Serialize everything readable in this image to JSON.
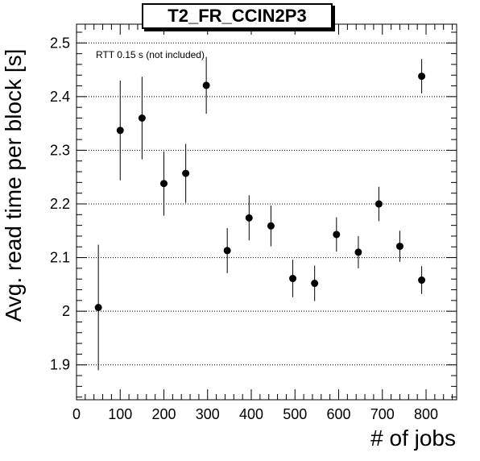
{
  "chart_data": {
    "type": "scatter",
    "title": "T2_FR_CCIN2P3",
    "annotation": "RTT 0.15 s (not included)",
    "xlabel": "# of jobs",
    "ylabel": "Avg. read time per block [s]",
    "xlim": [
      0,
      870
    ],
    "ylim": [
      1.835,
      2.535
    ],
    "xticks": [
      0,
      100,
      200,
      300,
      400,
      500,
      600,
      700,
      800
    ],
    "yticks": [
      1.9,
      2,
      2.1,
      2.2,
      2.3,
      2.4,
      2.5
    ],
    "xtick_labels": [
      "0",
      "100",
      "200",
      "300",
      "400",
      "500",
      "600",
      "700",
      "800"
    ],
    "ytick_labels": [
      "1.9",
      "2",
      "2.1",
      "2.2",
      "2.3",
      "2.4",
      "2.5"
    ],
    "grid": "horizontal dotted",
    "marker_color": "#000000",
    "points": [
      {
        "x": 50,
        "y": 2.007,
        "err": 0.117
      },
      {
        "x": 100,
        "y": 2.337,
        "err": 0.093
      },
      {
        "x": 150,
        "y": 2.36,
        "err": 0.077
      },
      {
        "x": 200,
        "y": 2.238,
        "err": 0.06
      },
      {
        "x": 250,
        "y": 2.257,
        "err": 0.055
      },
      {
        "x": 297,
        "y": 2.421,
        "err": 0.053
      },
      {
        "x": 345,
        "y": 2.113,
        "err": 0.042
      },
      {
        "x": 395,
        "y": 2.174,
        "err": 0.042
      },
      {
        "x": 445,
        "y": 2.159,
        "err": 0.038
      },
      {
        "x": 495,
        "y": 2.061,
        "err": 0.035
      },
      {
        "x": 545,
        "y": 2.052,
        "err": 0.033
      },
      {
        "x": 595,
        "y": 2.143,
        "err": 0.032
      },
      {
        "x": 645,
        "y": 2.11,
        "err": 0.03
      },
      {
        "x": 692,
        "y": 2.2,
        "err": 0.032
      },
      {
        "x": 740,
        "y": 2.121,
        "err": 0.029
      },
      {
        "x": 790,
        "y": 2.058,
        "err": 0.026
      },
      {
        "x": 790,
        "y": 2.438,
        "err": 0.032
      }
    ]
  }
}
